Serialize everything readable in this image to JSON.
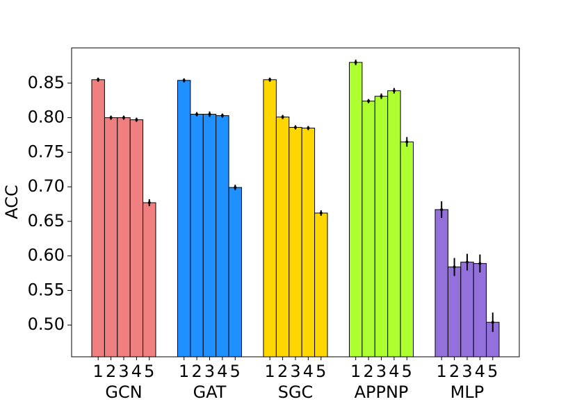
{
  "chart_data": {
    "type": "bar",
    "y_label": "ACC",
    "categories": [
      "1",
      "2",
      "3",
      "4",
      "5"
    ],
    "series": [
      {
        "name": "GCN",
        "color": "#f08080",
        "values": [
          0.855,
          0.8,
          0.8,
          0.797,
          0.677
        ],
        "errors": [
          0.003,
          0.003,
          0.003,
          0.003,
          0.005
        ]
      },
      {
        "name": "GAT",
        "color": "#1e90ff",
        "values": [
          0.854,
          0.805,
          0.805,
          0.803,
          0.699
        ],
        "errors": [
          0.003,
          0.003,
          0.004,
          0.003,
          0.004
        ]
      },
      {
        "name": "SGC",
        "color": "#ffd700",
        "values": [
          0.855,
          0.801,
          0.786,
          0.785,
          0.662
        ],
        "errors": [
          0.003,
          0.003,
          0.003,
          0.003,
          0.004
        ]
      },
      {
        "name": "APPNP",
        "color": "#adff2f",
        "values": [
          0.88,
          0.824,
          0.831,
          0.839,
          0.765
        ],
        "errors": [
          0.004,
          0.003,
          0.004,
          0.004,
          0.007
        ]
      },
      {
        "name": "MLP",
        "color": "#9370db",
        "values": [
          0.667,
          0.584,
          0.591,
          0.589,
          0.504
        ],
        "errors": [
          0.012,
          0.013,
          0.012,
          0.013,
          0.014
        ]
      }
    ],
    "ylim": [
      0.454,
      0.901
    ],
    "yticks": [
      {
        "value": 0.5,
        "label": "0.50"
      },
      0.55,
      {
        "value": 0.6,
        "label": "0.60"
      },
      0.65,
      {
        "value": 0.7,
        "label": "0.70"
      },
      0.75,
      {
        "value": 0.8,
        "label": "0.80"
      },
      0.85
    ],
    "grid": false
  }
}
